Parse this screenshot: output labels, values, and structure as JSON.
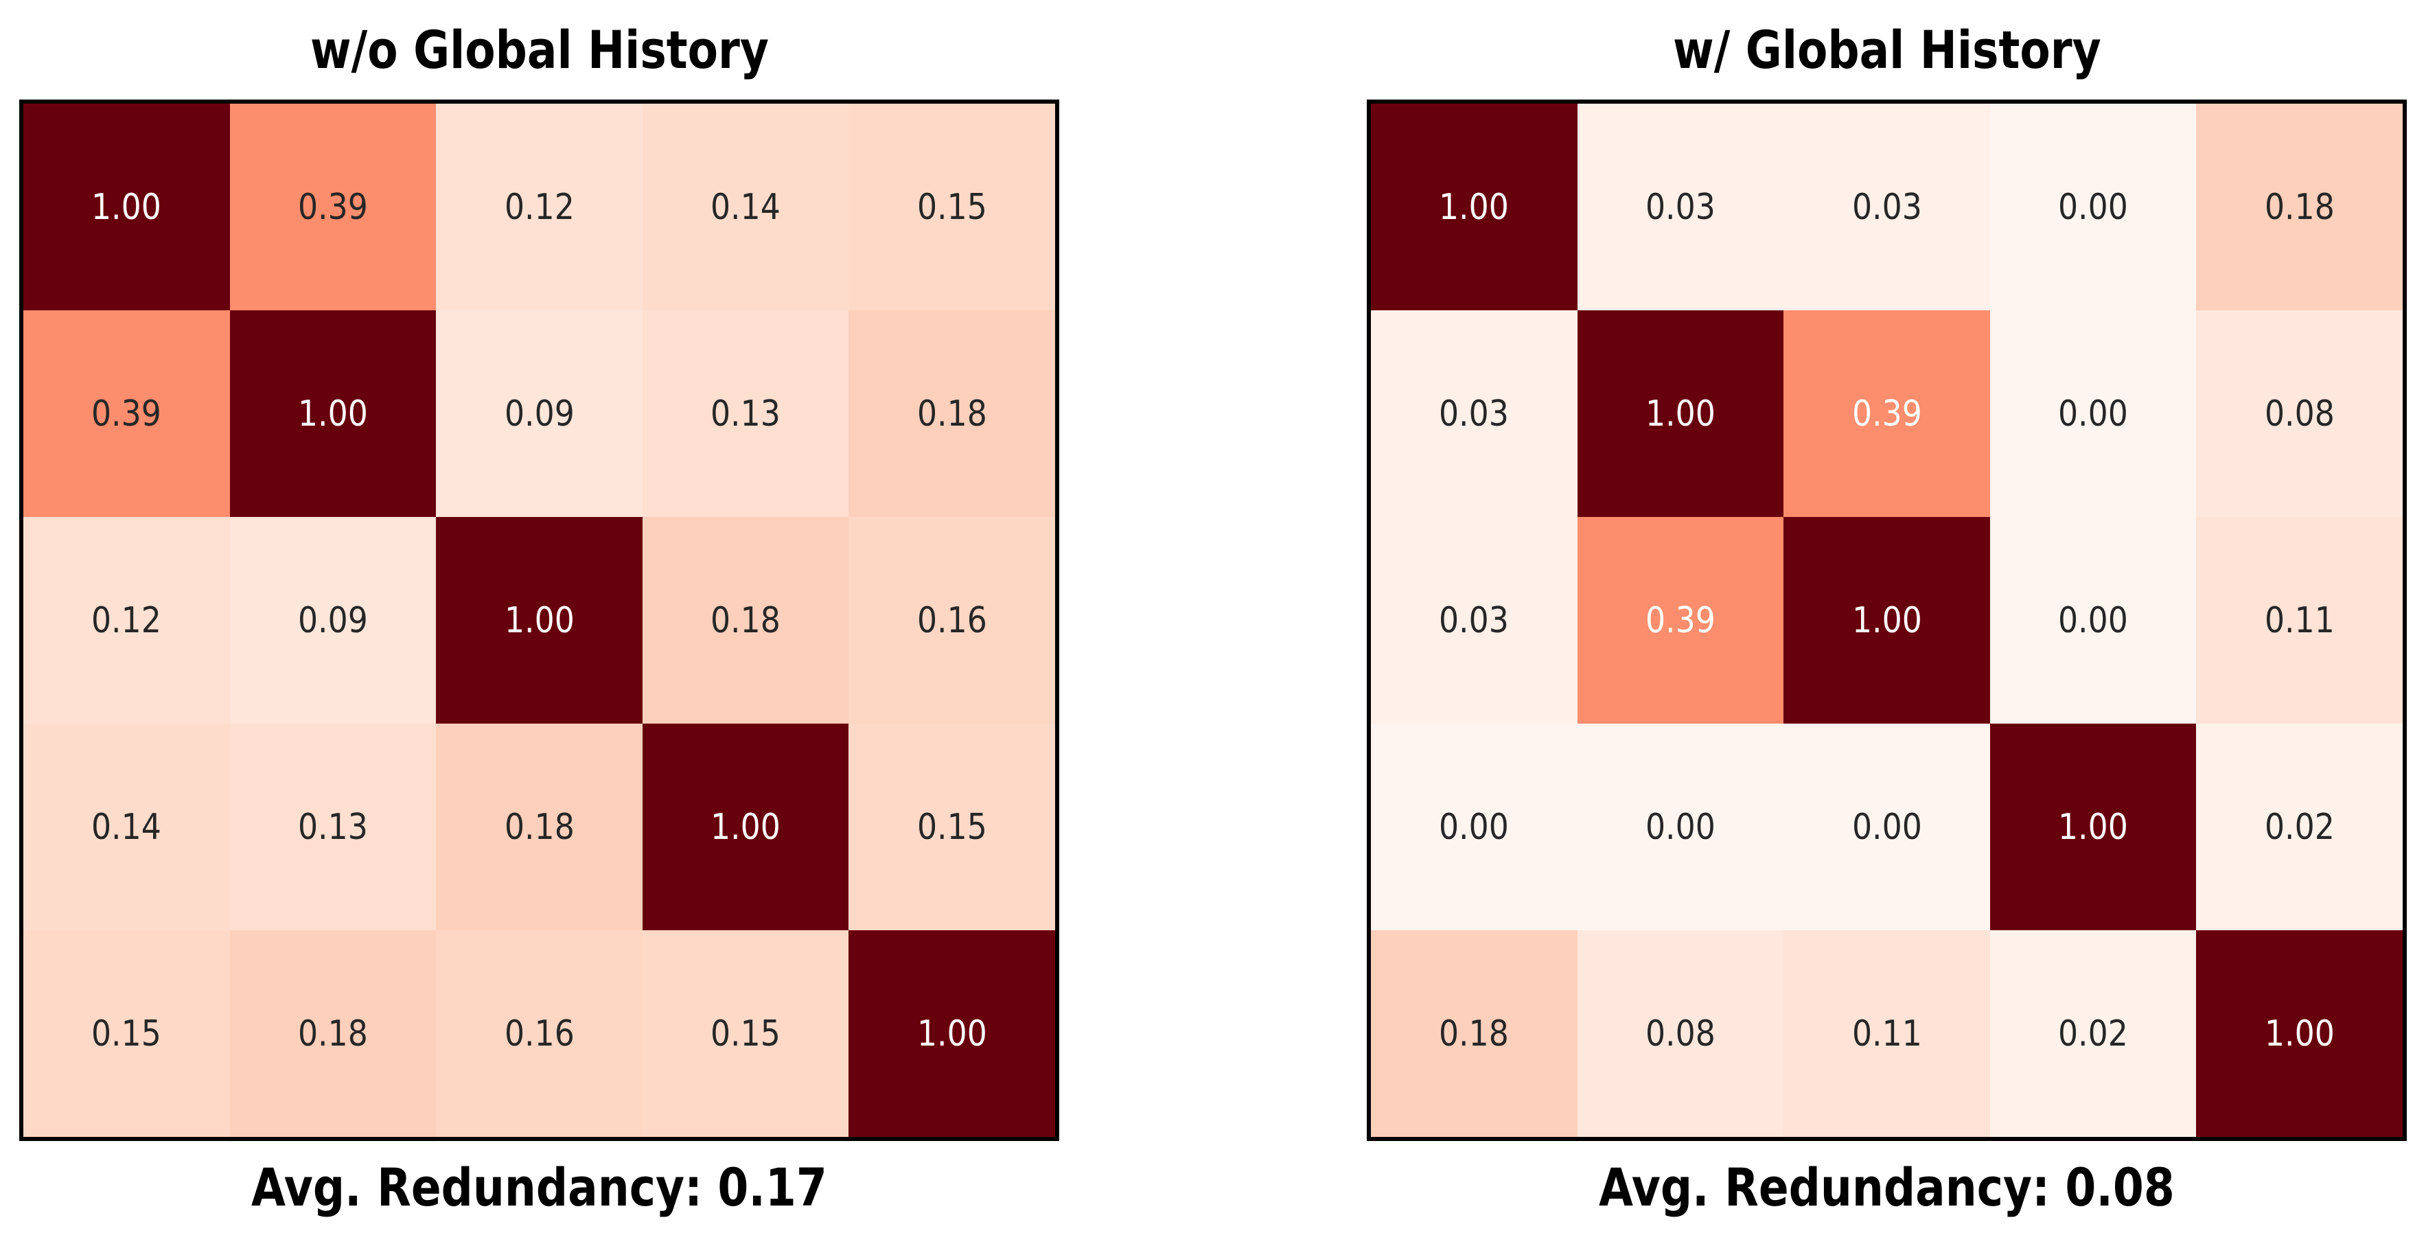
{
  "page": {
    "background": "#ffffff"
  },
  "chart_data": [
    {
      "type": "heatmap",
      "title": "w/o Global History",
      "caption": "Avg. Redundancy: 0.17",
      "avg_redundancy": 0.17,
      "rows": 5,
      "cols": 5,
      "matrix": [
        [
          1.0,
          0.39,
          0.12,
          0.14,
          0.15
        ],
        [
          0.39,
          1.0,
          0.09,
          0.13,
          0.18
        ],
        [
          0.12,
          0.09,
          1.0,
          0.18,
          0.16
        ],
        [
          0.14,
          0.13,
          0.18,
          1.0,
          0.15
        ],
        [
          0.15,
          0.18,
          0.16,
          0.15,
          1.0
        ]
      ],
      "value_range": [
        0,
        1
      ],
      "colormap": "Reds",
      "white_text_threshold": 0.5,
      "grid": false,
      "axis_ticks": false
    },
    {
      "type": "heatmap",
      "title": "w/ Global History",
      "caption": "Avg. Redundancy: 0.08",
      "avg_redundancy": 0.08,
      "rows": 5,
      "cols": 5,
      "matrix": [
        [
          1.0,
          0.03,
          0.03,
          0.0,
          0.18
        ],
        [
          0.03,
          1.0,
          0.39,
          0.0,
          0.08
        ],
        [
          0.03,
          0.39,
          1.0,
          0.0,
          0.11
        ],
        [
          0.0,
          0.0,
          0.0,
          1.0,
          0.02
        ],
        [
          0.18,
          0.08,
          0.11,
          0.02,
          1.0
        ]
      ],
      "value_range": [
        0,
        1
      ],
      "colormap": "Reds",
      "white_text_threshold": 0.3,
      "grid": false,
      "axis_ticks": false
    }
  ],
  "style": {
    "colormap_stops": [
      [
        0.0,
        [
          255,
          245,
          240
        ]
      ],
      [
        0.125,
        [
          254,
          224,
          210
        ]
      ],
      [
        0.25,
        [
          252,
          187,
          161
        ]
      ],
      [
        0.375,
        [
          252,
          146,
          114
        ]
      ],
      [
        0.5,
        [
          251,
          106,
          74
        ]
      ],
      [
        0.625,
        [
          239,
          59,
          44
        ]
      ],
      [
        0.75,
        [
          203,
          24,
          29
        ]
      ],
      [
        0.875,
        [
          165,
          15,
          21
        ]
      ],
      [
        1.0,
        [
          103,
          0,
          13
        ]
      ]
    ],
    "cell_text_dark": "#262626",
    "cell_text_white": "#ffffff",
    "heatmap_border": "#000000",
    "title_color": "#000000"
  }
}
